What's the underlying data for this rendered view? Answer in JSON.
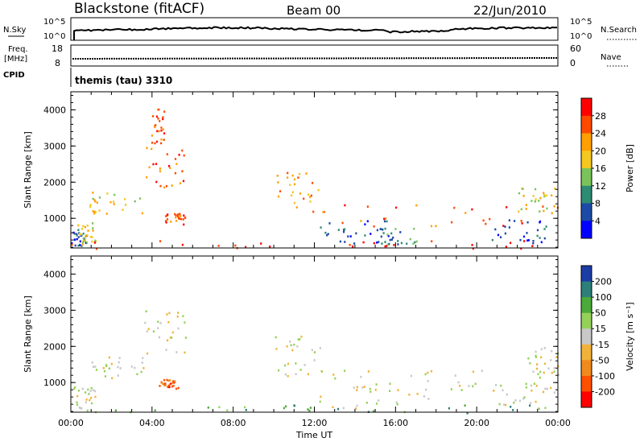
{
  "header": {
    "station": "Blackstone (fitACF)",
    "beam": "Beam 00",
    "date": "22/Jun/2010"
  },
  "status_panels": {
    "nsky_label": "N.Sky",
    "nsearch_label": "N.Search",
    "freq_label": "Freq.",
    "freq_unit": "[MHz]",
    "nave_label": "Nave",
    "cpid_label": "CPID",
    "cpid_value": "themis (tau) 3310",
    "noise_left_ticks": [
      "10^5",
      "10^0"
    ],
    "noise_right_ticks": [
      "10^5",
      "10^0"
    ],
    "freq_ticks": [
      "18",
      "8"
    ],
    "nave_ticks": [
      "60",
      "0"
    ]
  },
  "chart_data": [
    {
      "type": "heatmap",
      "name": "power",
      "ylabel": "Slant Range [km]",
      "ylim": [
        180,
        4500
      ],
      "xlim": [
        0,
        24
      ],
      "y_ticks": [
        1000,
        2000,
        3000,
        4000
      ],
      "colorbar": {
        "label": "Power [dB]",
        "ticks": [
          "28",
          "24",
          "20",
          "16",
          "12",
          "8",
          "4"
        ],
        "colors": [
          "#ff0000",
          "#ff4a00",
          "#ffa000",
          "#f4c820",
          "#7ac35a",
          "#2e8b74",
          "#1c4aa6",
          "#0000ff"
        ]
      },
      "regions": [
        {
          "t0": 0.0,
          "t1": 0.9,
          "r0": 250,
          "r1": 750,
          "level": 6
        },
        {
          "t0": 0.3,
          "t1": 1.2,
          "r0": 300,
          "r1": 900,
          "level": 3
        },
        {
          "t0": 0.9,
          "t1": 3.6,
          "r0": 1150,
          "r1": 1750,
          "level": 3
        },
        {
          "t0": 3.6,
          "t1": 5.7,
          "r0": 1800,
          "r1": 3000,
          "level": 1
        },
        {
          "t0": 3.8,
          "t1": 4.6,
          "r0": 3000,
          "r1": 4100,
          "level": 1
        },
        {
          "t0": 4.6,
          "t1": 5.6,
          "r0": 850,
          "r1": 1150,
          "level": 1
        },
        {
          "t0": 10.0,
          "t1": 12.2,
          "r0": 1200,
          "r1": 2300,
          "level": 2
        },
        {
          "t0": 12.0,
          "t1": 15.8,
          "r0": 300,
          "r1": 1000,
          "level": 6
        },
        {
          "t0": 12.0,
          "t1": 24.0,
          "r0": 800,
          "r1": 1400,
          "level": 1
        },
        {
          "t0": 15.0,
          "t1": 17.0,
          "r0": 300,
          "r1": 750,
          "level": 5
        },
        {
          "t0": 20.5,
          "t1": 23.5,
          "r0": 300,
          "r1": 1000,
          "level": 6
        },
        {
          "t0": 22.0,
          "t1": 24.0,
          "r0": 1200,
          "r1": 1900,
          "level": 3
        },
        {
          "t0": 0.0,
          "t1": 24.0,
          "r0": 180,
          "r1": 400,
          "level": 0
        }
      ]
    },
    {
      "type": "heatmap",
      "name": "velocity",
      "ylabel": "Slant Range [km]",
      "xlabel": "Time UT",
      "ylim": [
        180,
        4500
      ],
      "xlim": [
        0,
        24
      ],
      "y_ticks": [
        1000,
        2000,
        3000,
        4000
      ],
      "x_ticks": [
        "00:00",
        "04:00",
        "08:00",
        "12:00",
        "16:00",
        "20:00",
        "00:00"
      ],
      "colorbar": {
        "label": "Velocity [m s⁻¹]",
        "ticks": [
          "200",
          "100",
          "50",
          "15",
          "-15",
          "-50",
          "-100",
          "-200"
        ],
        "colors": [
          "#1c3ca6",
          "#2e7f7a",
          "#4caa3a",
          "#96d25a",
          "#c8c8c8",
          "#f2b23a",
          "#f08a1e",
          "#ff5000",
          "#ff0000"
        ]
      },
      "regions": [
        {
          "t0": 0.0,
          "t1": 1.2,
          "r0": 250,
          "r1": 900,
          "level": 4
        },
        {
          "t0": 0.9,
          "t1": 3.6,
          "r0": 1150,
          "r1": 1750,
          "level": 4
        },
        {
          "t0": 3.6,
          "t1": 5.7,
          "r0": 1800,
          "r1": 3000,
          "level": 4
        },
        {
          "t0": 4.3,
          "t1": 5.3,
          "r0": 850,
          "r1": 1100,
          "level": 7
        },
        {
          "t0": 10.0,
          "t1": 12.5,
          "r0": 1200,
          "r1": 2300,
          "level": 4
        },
        {
          "t0": 12.0,
          "t1": 18.0,
          "r0": 300,
          "r1": 1000,
          "level": 4
        },
        {
          "t0": 12.0,
          "t1": 24.0,
          "r0": 800,
          "r1": 1400,
          "level": 4
        },
        {
          "t0": 20.5,
          "t1": 24.0,
          "r0": 300,
          "r1": 1000,
          "level": 4
        },
        {
          "t0": 22.5,
          "t1": 24.0,
          "r0": 1200,
          "r1": 2000,
          "level": 4
        },
        {
          "t0": 0.0,
          "t1": 24.0,
          "r0": 180,
          "r1": 400,
          "level": 2
        }
      ]
    }
  ]
}
